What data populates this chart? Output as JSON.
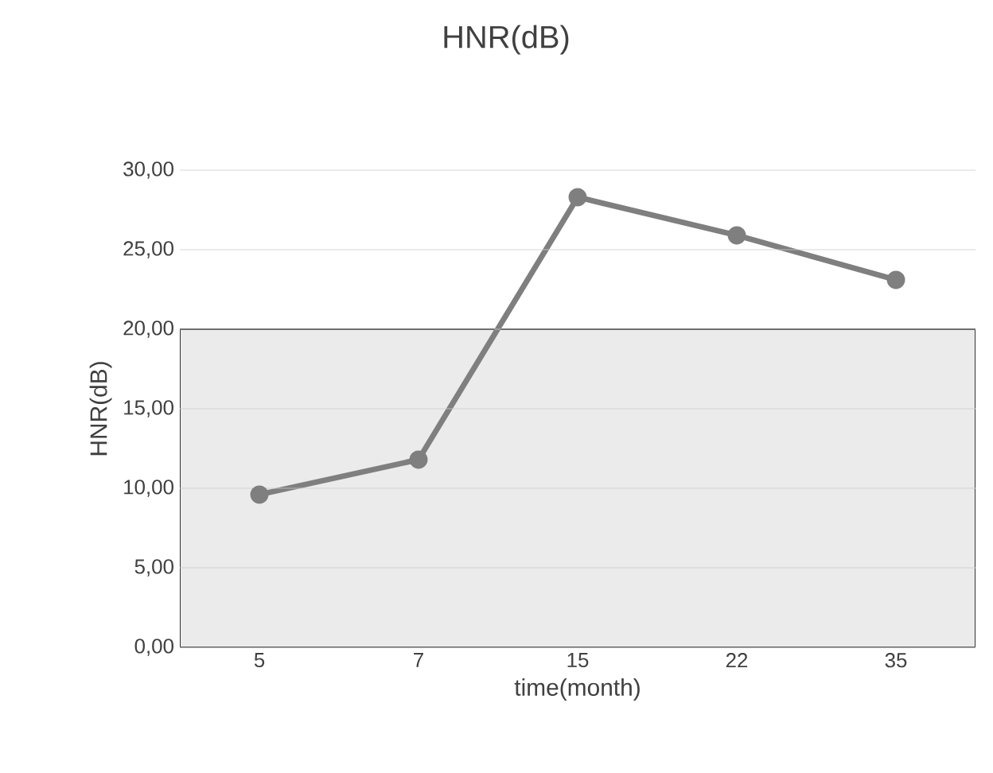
{
  "chart_data": {
    "type": "line",
    "title": "HNR(dB)",
    "xlabel": "time(month)",
    "ylabel": "HNR(dB)",
    "categories": [
      "5",
      "7",
      "15",
      "22",
      "35"
    ],
    "series": [
      {
        "color": "#7f7f7f",
        "values": [
          9.6,
          11.8,
          28.3,
          25.9,
          23.1
        ]
      }
    ],
    "ylim": [
      0,
      30
    ],
    "yticks": [
      {
        "value": 0,
        "label": "0,00"
      },
      {
        "value": 5,
        "label": "5,00"
      },
      {
        "value": 10,
        "label": "10,00"
      },
      {
        "value": 15,
        "label": "15,00"
      },
      {
        "value": 20,
        "label": "20,00"
      },
      {
        "value": 25,
        "label": "25,00"
      },
      {
        "value": 30,
        "label": "30,00"
      }
    ],
    "bands": [
      {
        "axis": "y",
        "from": 0,
        "to": 20,
        "color": "#ebebeb"
      }
    ],
    "grid": "y",
    "marker": "circle",
    "line_style": "solid"
  }
}
